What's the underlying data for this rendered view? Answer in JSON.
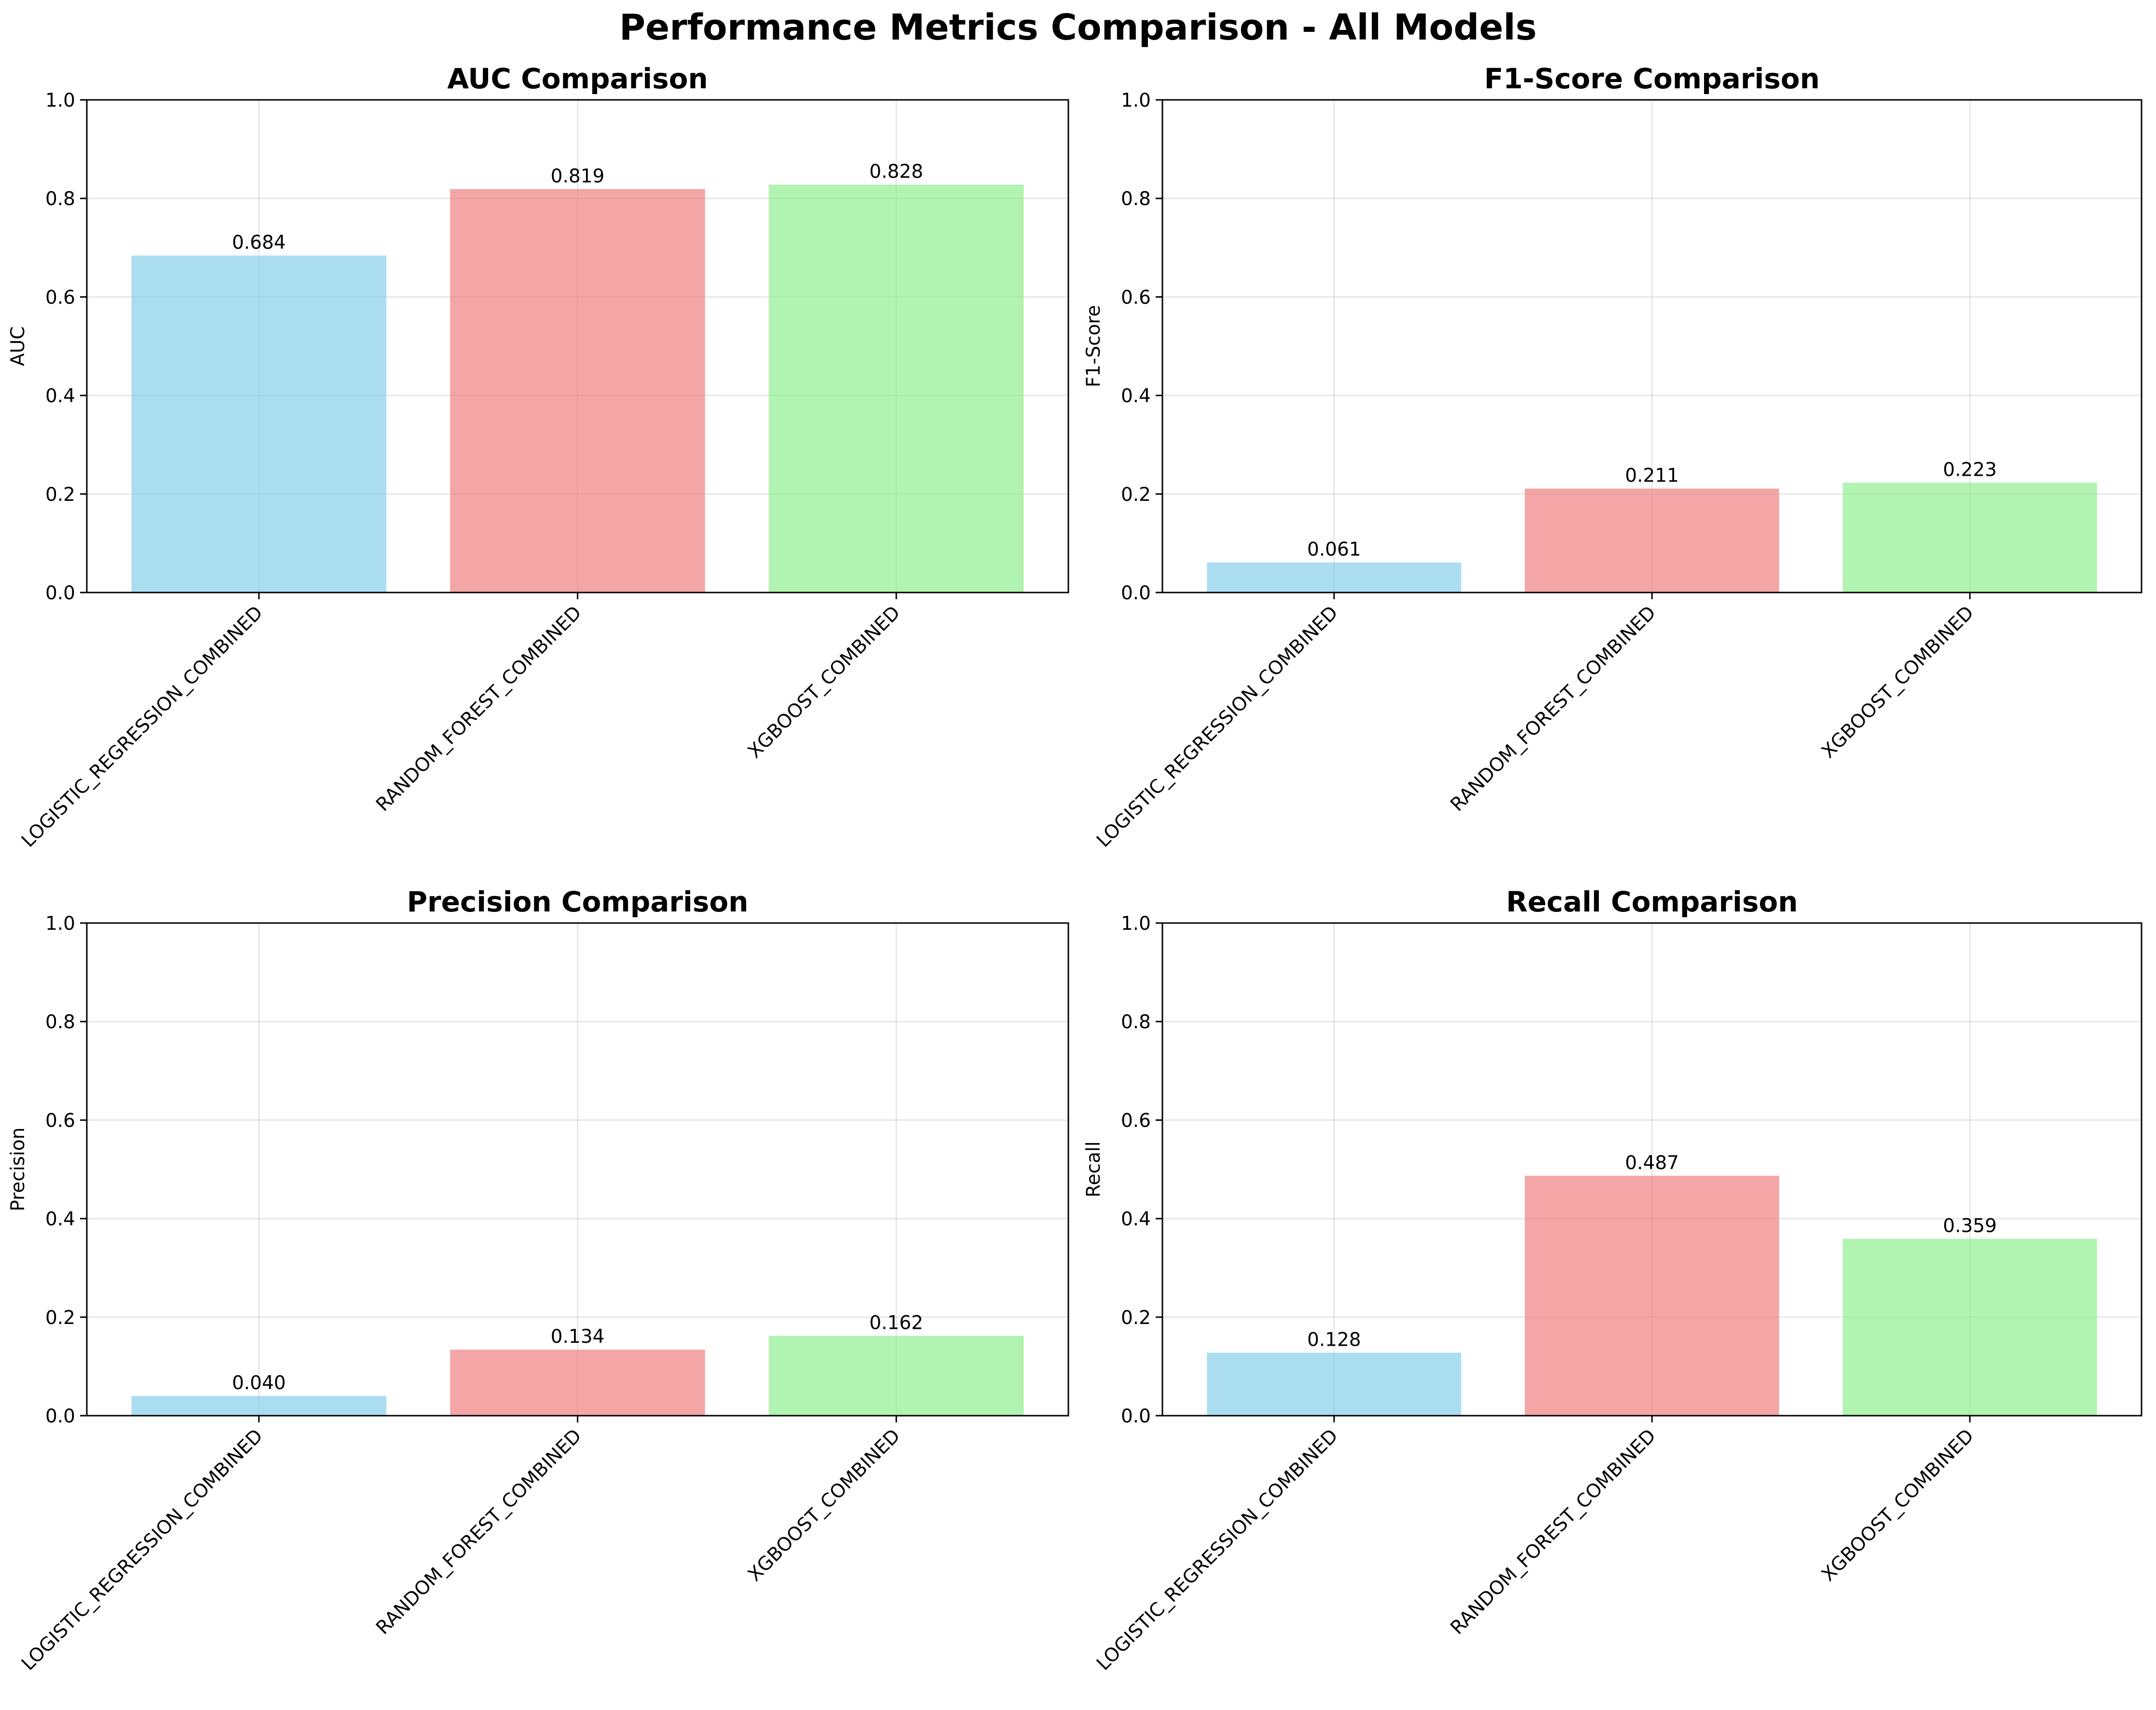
{
  "figure": {
    "title": "Performance Metrics Comparison - All Models"
  },
  "chart_data": [
    {
      "type": "bar",
      "title": "AUC Comparison",
      "xlabel": "",
      "ylabel": "AUC",
      "categories": [
        "LOGISTIC_REGRESSION_COMBINED",
        "RANDOM_FOREST_COMBINED",
        "XGBOOST_COMBINED"
      ],
      "values": [
        0.684,
        0.819,
        0.828
      ],
      "value_labels": [
        "0.684",
        "0.819",
        "0.828"
      ],
      "ylim": [
        0,
        1
      ],
      "yticks": [
        "0.0",
        "0.2",
        "0.4",
        "0.6",
        "0.8",
        "1.0"
      ],
      "grid": true,
      "colors": [
        "#87ceeb",
        "#f08080",
        "#90ee90"
      ]
    },
    {
      "type": "bar",
      "title": "F1-Score Comparison",
      "xlabel": "",
      "ylabel": "F1-Score",
      "categories": [
        "LOGISTIC_REGRESSION_COMBINED",
        "RANDOM_FOREST_COMBINED",
        "XGBOOST_COMBINED"
      ],
      "values": [
        0.061,
        0.211,
        0.223
      ],
      "value_labels": [
        "0.061",
        "0.211",
        "0.223"
      ],
      "ylim": [
        0,
        1
      ],
      "yticks": [
        "0.0",
        "0.2",
        "0.4",
        "0.6",
        "0.8",
        "1.0"
      ],
      "grid": true,
      "colors": [
        "#87ceeb",
        "#f08080",
        "#90ee90"
      ]
    },
    {
      "type": "bar",
      "title": "Precision Comparison",
      "xlabel": "",
      "ylabel": "Precision",
      "categories": [
        "LOGISTIC_REGRESSION_COMBINED",
        "RANDOM_FOREST_COMBINED",
        "XGBOOST_COMBINED"
      ],
      "values": [
        0.04,
        0.134,
        0.162
      ],
      "value_labels": [
        "0.040",
        "0.134",
        "0.162"
      ],
      "ylim": [
        0,
        1
      ],
      "yticks": [
        "0.0",
        "0.2",
        "0.4",
        "0.6",
        "0.8",
        "1.0"
      ],
      "grid": true,
      "colors": [
        "#87ceeb",
        "#f08080",
        "#90ee90"
      ]
    },
    {
      "type": "bar",
      "title": "Recall Comparison",
      "xlabel": "",
      "ylabel": "Recall",
      "categories": [
        "LOGISTIC_REGRESSION_COMBINED",
        "RANDOM_FOREST_COMBINED",
        "XGBOOST_COMBINED"
      ],
      "values": [
        0.128,
        0.487,
        0.359
      ],
      "value_labels": [
        "0.128",
        "0.487",
        "0.359"
      ],
      "ylim": [
        0,
        1
      ],
      "yticks": [
        "0.0",
        "0.2",
        "0.4",
        "0.6",
        "0.8",
        "1.0"
      ],
      "grid": true,
      "colors": [
        "#87ceeb",
        "#f08080",
        "#90ee90"
      ]
    }
  ]
}
